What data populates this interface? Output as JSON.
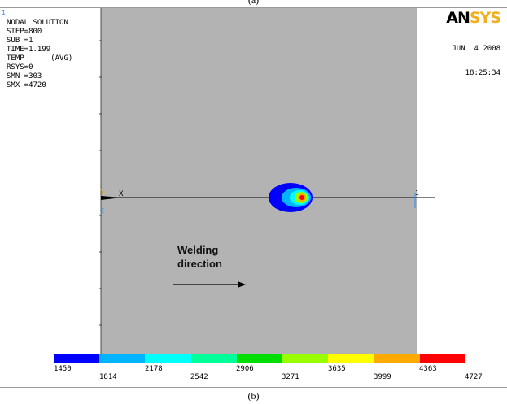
{
  "top_caption": "(a)",
  "corner_mark": "1",
  "info_lines": [
    "NODAL SOLUTION",
    "STEP=800",
    "SUB =1",
    "TIME=1.199",
    "TEMP      (AVG)",
    "RSYS=0",
    "SMN =303",
    "SMX =4720"
  ],
  "logo": {
    "main": "AN",
    "accent": "SYS"
  },
  "date_lines": [
    "JUN  4 2008",
    "18:25:34"
  ],
  "axis": {
    "x_label": "X",
    "y_label": "Y",
    "z_label": "Z"
  },
  "node_label": "1",
  "annotation": {
    "line1": "Welding",
    "line2": "direction"
  },
  "legend": {
    "colors": [
      "#0000ff",
      "#00b4ff",
      "#00ffff",
      "#00ff99",
      "#00dd00",
      "#99ff00",
      "#ffff00",
      "#ffaa00",
      "#ff0000"
    ],
    "top_labels": [
      "1450",
      "2178",
      "2906",
      "3635",
      "4363"
    ],
    "bottom_labels": [
      "1814",
      "2542",
      "3271",
      "3999",
      "4727"
    ]
  },
  "caption": "(b)"
}
